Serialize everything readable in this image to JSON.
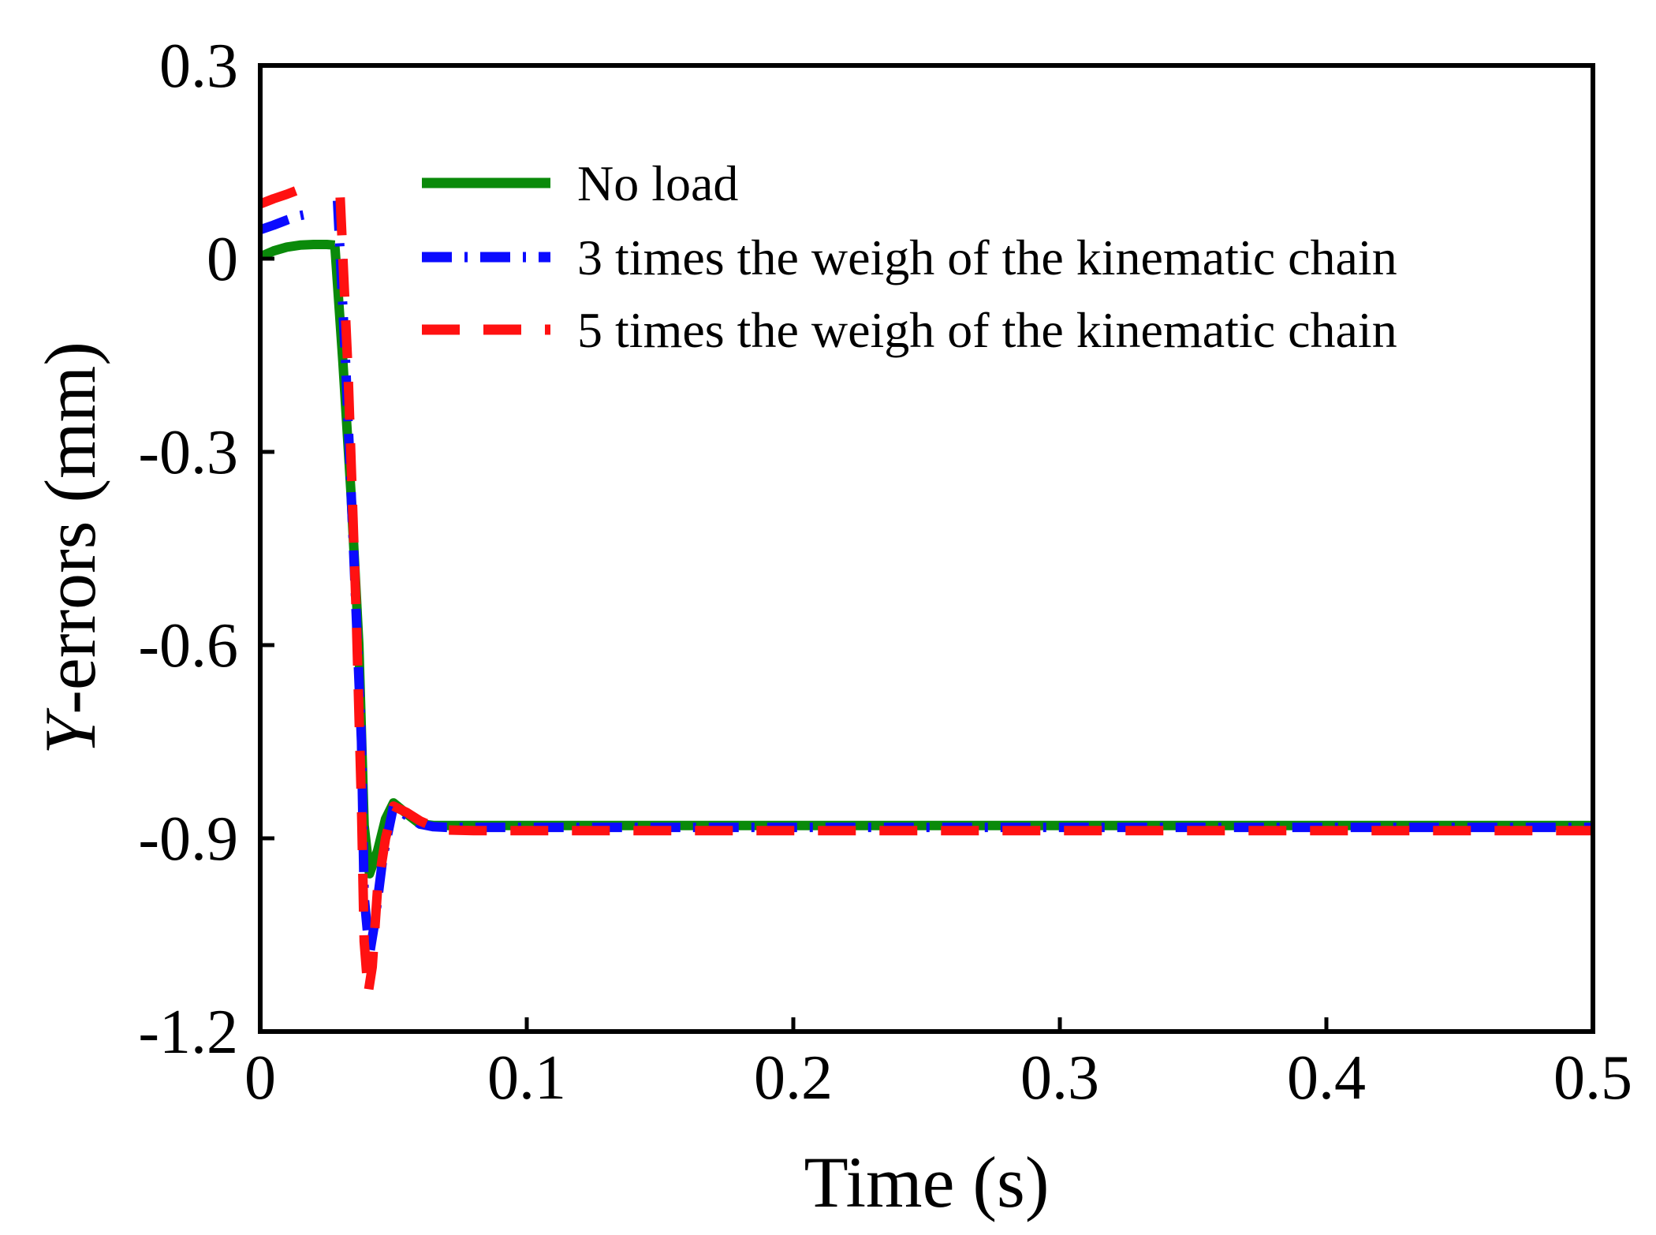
{
  "chart_data": {
    "type": "line",
    "title": "",
    "xlabel": "Time (s)",
    "ylabel": "Y-errors (mm)",
    "ylabel_italic_part": "Y",
    "ylabel_rest": "-errors (mm)",
    "xlim": [
      0,
      0.5
    ],
    "ylim": [
      -1.2,
      0.3
    ],
    "xticks": [
      0,
      0.1,
      0.2,
      0.3,
      0.4,
      0.5
    ],
    "xtick_labels": [
      "0",
      "0.1",
      "0.2",
      "0.3",
      "0.4",
      "0.5"
    ],
    "yticks": [
      0.3,
      0,
      -0.3,
      -0.6,
      -0.9,
      -1.2
    ],
    "ytick_labels": [
      "0.3",
      "0",
      "-0.3",
      "-0.6",
      "-0.9",
      "-1.2"
    ],
    "grid": false,
    "legend_position": "top-right",
    "series": [
      {
        "name": "No load",
        "color": "#0a8a0a",
        "dash": "solid",
        "segments": [
          {
            "x": [
              0,
              0.005,
              0.01,
              0.015,
              0.02,
              0.025,
              0.028
            ],
            "y": [
              0.003,
              0.012,
              0.018,
              0.021,
              0.022,
              0.022,
              0.021
            ]
          },
          {
            "x": [
              0.028,
              0.031,
              0.034,
              0.037,
              0.039,
              0.041,
              0.044,
              0.047,
              0.05,
              0.055,
              0.06,
              0.065,
              0.07,
              0.08,
              0.1,
              0.2,
              0.3,
              0.4,
              0.5
            ],
            "y": [
              0.021,
              -0.16,
              -0.36,
              -0.6,
              -0.88,
              -0.955,
              -0.92,
              -0.87,
              -0.845,
              -0.862,
              -0.878,
              -0.88,
              -0.88,
              -0.88,
              -0.88,
              -0.88,
              -0.88,
              -0.88,
              -0.88
            ]
          }
        ]
      },
      {
        "name": "3 times the weigh of the kinematic chain",
        "color": "#0b0bff",
        "dash": "dash-dot",
        "segments": [
          {
            "x": [
              0,
              0.005,
              0.01,
              0.015,
              0.02
            ],
            "y": [
              0.045,
              0.052,
              0.06,
              0.067,
              0.071
            ]
          },
          {
            "x": [
              0.029,
              0.032,
              0.035,
              0.038,
              0.039,
              0.041,
              0.043,
              0.046,
              0.05,
              0.055,
              0.06,
              0.065,
              0.07,
              0.08,
              0.1,
              0.2,
              0.3,
              0.4,
              0.5
            ],
            "y": [
              0.09,
              -0.16,
              -0.45,
              -0.75,
              -0.99,
              -1.08,
              -1.03,
              -0.93,
              -0.85,
              -0.865,
              -0.878,
              -0.882,
              -0.883,
              -0.883,
              -0.883,
              -0.883,
              -0.883,
              -0.883,
              -0.883
            ]
          }
        ]
      },
      {
        "name": "5 times the weigh of the kinematic chain",
        "color": "#ff1111",
        "dash": "dashed",
        "segments": [
          {
            "x": [
              0,
              0.005,
              0.01,
              0.015
            ],
            "y": [
              0.085,
              0.093,
              0.1,
              0.108
            ]
          },
          {
            "x": [
              0.03,
              0.033,
              0.036,
              0.038,
              0.039,
              0.0405,
              0.042,
              0.044,
              0.047,
              0.05,
              0.055,
              0.06,
              0.065,
              0.07,
              0.08,
              0.09,
              0.1,
              0.2,
              0.3,
              0.4,
              0.5
            ],
            "y": [
              0.095,
              -0.18,
              -0.55,
              -0.85,
              -1.06,
              -1.14,
              -1.1,
              -0.98,
              -0.9,
              -0.85,
              -0.86,
              -0.873,
              -0.882,
              -0.887,
              -0.888,
              -0.888,
              -0.888,
              -0.888,
              -0.888,
              -0.888,
              -0.888
            ]
          }
        ]
      }
    ]
  }
}
